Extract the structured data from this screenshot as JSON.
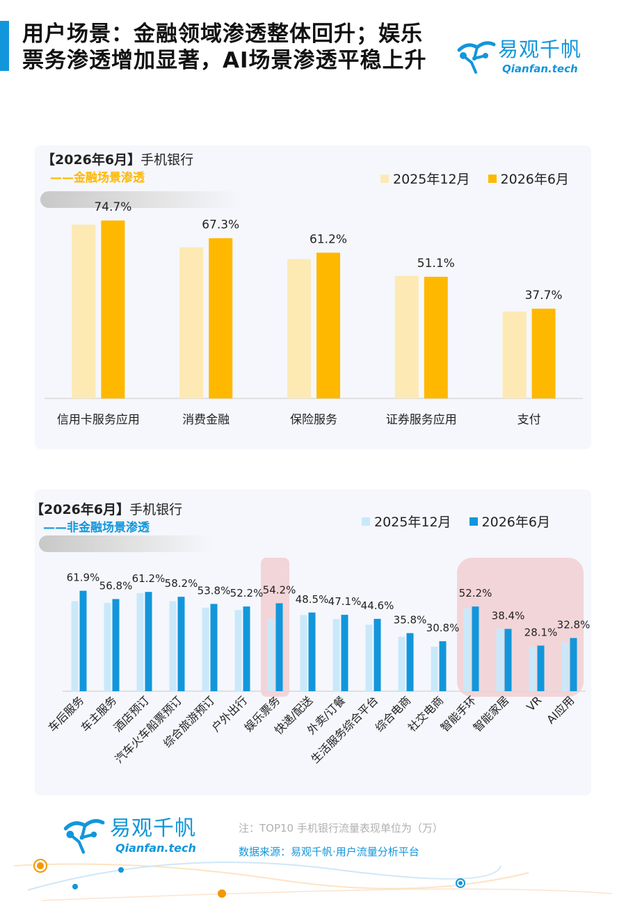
{
  "title": "用户场景：金融领域渗透整体回升；娱乐票务渗透增加显著，AI场景渗透平稳上升",
  "brand": {
    "name": "易观千帆",
    "sub": "Qianfan.tech",
    "color": "#1296db"
  },
  "legend": {
    "prev": "2025年12月",
    "curr": "2026年6月"
  },
  "note": "注：TOP10 手机银行流量表现单位为（万）",
  "source": "数据来源：易观千帆·用户流量分析平台",
  "chart_data": [
    {
      "type": "bar",
      "heading_bracket": "【2026年6月】",
      "heading_text": "手机银行",
      "subtitle": "——金融场景渗透",
      "categories": [
        "信用卡服务应用",
        "消费金融",
        "保险服务",
        "证券服务应用",
        "支付"
      ],
      "series": [
        {
          "name": "2025年12月",
          "color": "#fde9b4",
          "values": [
            73.0,
            63.5,
            58.5,
            51.5,
            36.5
          ]
        },
        {
          "name": "2026年6月",
          "color": "#ffb800",
          "values": [
            74.7,
            67.3,
            61.2,
            51.1,
            37.7
          ]
        }
      ],
      "data_labels": [
        "74.7%",
        "67.3%",
        "61.2%",
        "51.1%",
        "37.7%"
      ],
      "ylim": [
        0,
        80
      ],
      "legend_position": "top-right",
      "grid": false
    },
    {
      "type": "bar",
      "heading_bracket": "【2026年6月】",
      "heading_text": "手机银行",
      "subtitle": "——非金融场景渗透",
      "categories": [
        "车后服务",
        "车主服务",
        "酒店预订",
        "汽车火车船票预订",
        "综合旅游预订",
        "户外出行",
        "娱乐票务",
        "快递/配送",
        "外卖/订餐",
        "生活服务综合平台",
        "综合电商",
        "社交电商",
        "智能手环",
        "智能家居",
        "VR",
        "AI应用"
      ],
      "series": [
        {
          "name": "2025年12月",
          "color": "#c9e9fa",
          "values": [
            55.5,
            54.5,
            60.5,
            55.5,
            51.5,
            50.0,
            44.5,
            47.0,
            44.5,
            41.0,
            33.5,
            27.5,
            51.0,
            38.5,
            27.5,
            30.0
          ]
        },
        {
          "name": "2026年6月",
          "color": "#1296db",
          "values": [
            61.9,
            56.8,
            61.2,
            58.2,
            53.8,
            52.2,
            54.2,
            48.5,
            47.1,
            44.6,
            35.8,
            30.8,
            52.2,
            38.4,
            28.1,
            32.8
          ]
        }
      ],
      "data_labels": [
        "61.9%",
        "56.8%",
        "61.2%",
        "58.2%",
        "53.8%",
        "52.2%",
        "54.2%",
        "48.5%",
        "47.1%",
        "44.6%",
        "35.8%",
        "30.8%",
        "52.2%",
        "38.4%",
        "28.1%",
        "32.8%"
      ],
      "highlight_categories": [
        "娱乐票务",
        "智能手环",
        "智能家居",
        "VR",
        "AI应用"
      ],
      "ylim": [
        0,
        75
      ],
      "legend_position": "top-right",
      "grid": false
    }
  ]
}
